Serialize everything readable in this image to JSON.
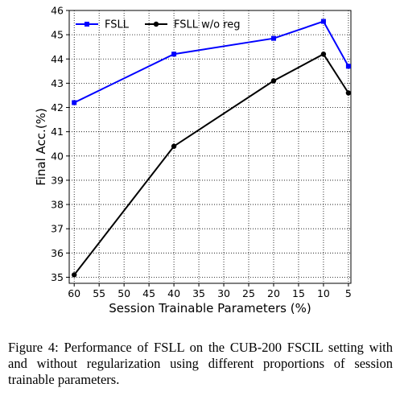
{
  "chart_data": {
    "type": "line",
    "xlabel": "Session Trainable Parameters (%)",
    "ylabel": "Final Acc.(%)",
    "x_ticks": [
      60,
      55,
      50,
      45,
      40,
      35,
      30,
      25,
      20,
      15,
      10,
      5
    ],
    "y_ticks": [
      35,
      36,
      37,
      38,
      39,
      40,
      41,
      42,
      43,
      44,
      45,
      46
    ],
    "xlim": [
      61,
      4.5
    ],
    "ylim": [
      34.75,
      46
    ],
    "x_reversed": true,
    "grid": true,
    "legend_position": "top-left",
    "series": [
      {
        "name": "FSLL",
        "color": "#0000ff",
        "marker": "square",
        "x": [
          60,
          40,
          20,
          10,
          5
        ],
        "y": [
          42.2,
          44.2,
          44.85,
          45.55,
          43.7
        ]
      },
      {
        "name": "FSLL w/o reg",
        "color": "#000000",
        "marker": "circle",
        "x": [
          60,
          40,
          20,
          10,
          5
        ],
        "y": [
          35.1,
          40.4,
          43.1,
          44.2,
          42.6
        ]
      }
    ]
  },
  "caption": "Figure 4: Performance of FSLL on the CUB-200 FSCIL setting with and without regularization using different proportions of session trainable parameters."
}
